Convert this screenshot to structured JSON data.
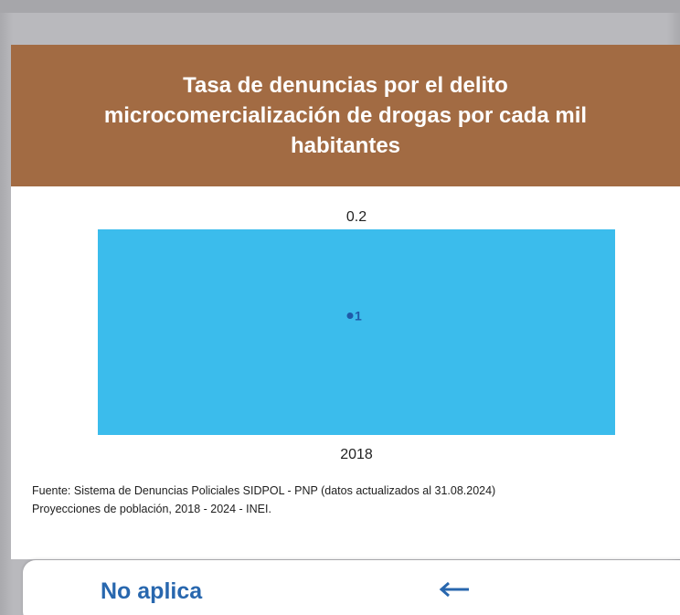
{
  "card": {
    "title_lines": [
      "Tasa de denuncias por el delito",
      "microcomercialización de drogas por cada mil",
      "habitantes"
    ],
    "header_color": "#a26b43"
  },
  "chart_data": {
    "type": "bar",
    "categories": [
      "2018"
    ],
    "series": [
      {
        "values": [
          0.2
        ],
        "color": "#3bbcec"
      }
    ],
    "data_labels": [
      "0.2"
    ],
    "marker_label": "1",
    "title": "Tasa de denuncias por el delito microcomercialización de drogas por cada mil habitantes",
    "xlabel": "",
    "ylabel": "",
    "ylim": [
      0,
      0.2
    ],
    "grid": false,
    "legend": "none"
  },
  "source": {
    "line1": "Fuente: Sistema de Denuncias Policiales SIDPOL - PNP (datos actualizados al 31.08.2024)",
    "line2": "Proyecciones de población, 2018 - 2024 - INEI."
  },
  "footer": {
    "label": "No aplica",
    "arrow_icon": "arrow-left-icon",
    "accent_color": "#2867ae"
  }
}
